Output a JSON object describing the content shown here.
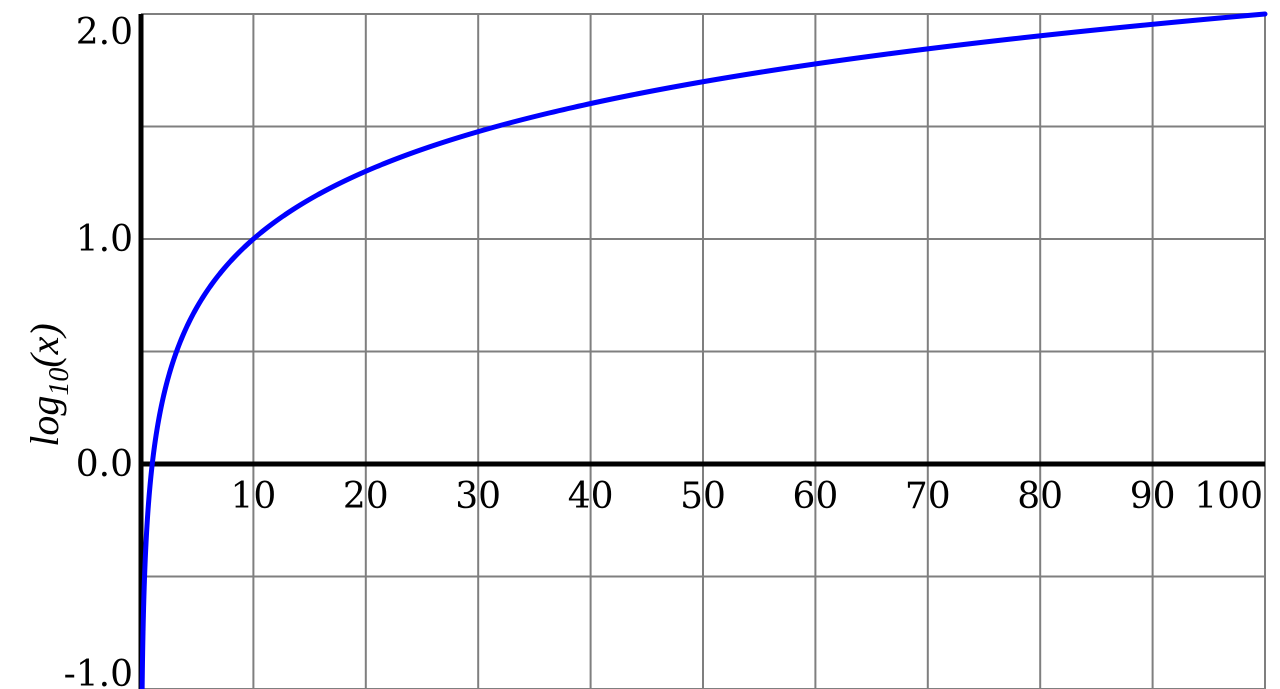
{
  "chart_data": {
    "type": "line",
    "ylabel": {
      "main": "log",
      "sub": "10",
      "suffix": "(x)"
    },
    "xlim": [
      0,
      100
    ],
    "ylim": [
      -1.0,
      2.0
    ],
    "grid": true,
    "x_ticks": [
      10,
      20,
      30,
      40,
      50,
      60,
      70,
      80,
      90,
      100
    ],
    "x_tick_labels": [
      "10",
      "20",
      "30",
      "40",
      "50",
      "60",
      "70",
      "80",
      "90",
      "100"
    ],
    "y_ticks": [
      -1.0,
      0.0,
      1.0,
      2.0
    ],
    "y_tick_labels": [
      "-1.0",
      "0.0",
      "1.0",
      "2.0"
    ],
    "y_gridlines": [
      -1.0,
      -0.5,
      0.0,
      0.5,
      1.0,
      1.5,
      2.0
    ],
    "series": [
      {
        "color": "#0000ff",
        "function": "log10(x)",
        "x": [
          0.1,
          0.2,
          0.5,
          1,
          2,
          3,
          5,
          7,
          10,
          15,
          20,
          25,
          30,
          40,
          50,
          60,
          70,
          80,
          90,
          100
        ],
        "y": [
          -1.0,
          -0.699,
          -0.301,
          0.0,
          0.301,
          0.477,
          0.699,
          0.845,
          1.0,
          1.176,
          1.301,
          1.398,
          1.477,
          1.602,
          1.699,
          1.778,
          1.845,
          1.903,
          1.954,
          2.0
        ]
      }
    ]
  }
}
